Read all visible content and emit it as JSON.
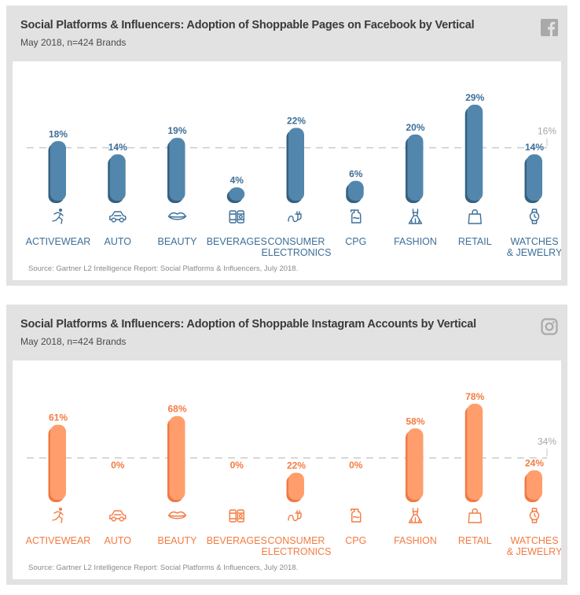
{
  "colors": {
    "facebook_bar": "#5286ad",
    "facebook_bar_shadow": "#35607f",
    "facebook_text": "#3d6f98",
    "instagram_bar": "#ff9e6c",
    "instagram_bar_shadow": "#ef7a45",
    "instagram_text": "#f47b42",
    "panel_bg": "#e2e2e2",
    "avg_line": "#cfcfcf"
  },
  "panels": [
    {
      "id": "facebook",
      "title": "Social Platforms & Influencers: Adoption of Shoppable Pages on Facebook by Vertical",
      "subtitle": "May 2018, n=424 Brands",
      "source": "Source: Gartner L2 Intelligence Report: Social Platforms & Influencers, July 2018.",
      "platform_icon": "facebook-icon"
    },
    {
      "id": "instagram",
      "title": "Social Platforms & Influencers: Adoption of Shoppable Instagram Accounts by Vertical",
      "subtitle": "May 2018, n=424 Brands",
      "source": "Source: Gartner L2 Intelligence Report: Social Platforms & Influencers, July 2018.",
      "platform_icon": "instagram-icon"
    }
  ],
  "chart_data": [
    {
      "type": "bar",
      "platform": "Facebook",
      "categories": [
        "ACTIVEWEAR",
        "AUTO",
        "BEAUTY",
        "BEVERAGES",
        "CONSUMER ELECTRONICS",
        "CPG",
        "FASHION",
        "RETAIL",
        "WATCHES & JEWELRY"
      ],
      "category_lines": [
        [
          "ACTIVEWEAR"
        ],
        [
          "AUTO"
        ],
        [
          "BEAUTY"
        ],
        [
          "BEVERAGES"
        ],
        [
          "CONSUMER",
          "ELECTRONICS"
        ],
        [
          "CPG"
        ],
        [
          "FASHION"
        ],
        [
          "RETAIL"
        ],
        [
          "WATCHES",
          "& JEWELRY"
        ]
      ],
      "category_icons": [
        "runner-icon",
        "car-icon",
        "lips-icon",
        "beverage-cans-icon",
        "power-plug-icon",
        "cleaning-bottle-icon",
        "dress-icon",
        "shopping-bag-icon",
        "wristwatch-icon"
      ],
      "values": [
        18,
        14,
        19,
        4,
        22,
        6,
        20,
        29,
        14
      ],
      "value_labels": [
        "18%",
        "14%",
        "19%",
        "4%",
        "22%",
        "6%",
        "20%",
        "29%",
        "14%"
      ],
      "average": 16,
      "average_label": "16%",
      "unit": "%"
    },
    {
      "type": "bar",
      "platform": "Instagram",
      "categories": [
        "ACTIVEWEAR",
        "AUTO",
        "BEAUTY",
        "BEVERAGES",
        "CONSUMER ELECTRONICS",
        "CPG",
        "FASHION",
        "RETAIL",
        "WATCHES & JEWELRY"
      ],
      "category_lines": [
        [
          "ACTIVEWEAR"
        ],
        [
          "AUTO"
        ],
        [
          "BEAUTY"
        ],
        [
          "BEVERAGES"
        ],
        [
          "CONSUMER",
          "ELECTRONICS"
        ],
        [
          "CPG"
        ],
        [
          "FASHION"
        ],
        [
          "RETAIL"
        ],
        [
          "WATCHES",
          "& JEWELRY"
        ]
      ],
      "category_icons": [
        "runner-icon",
        "car-icon",
        "lips-icon",
        "beverage-cans-icon",
        "power-plug-icon",
        "cleaning-bottle-icon",
        "dress-icon",
        "shopping-bag-icon",
        "wristwatch-icon"
      ],
      "values": [
        61,
        0,
        68,
        0,
        22,
        0,
        58,
        78,
        24
      ],
      "value_labels": [
        "61%",
        "0%",
        "68%",
        "0%",
        "22%",
        "0%",
        "58%",
        "78%",
        "24%"
      ],
      "average": 34,
      "average_label": "34%",
      "unit": "%"
    }
  ]
}
